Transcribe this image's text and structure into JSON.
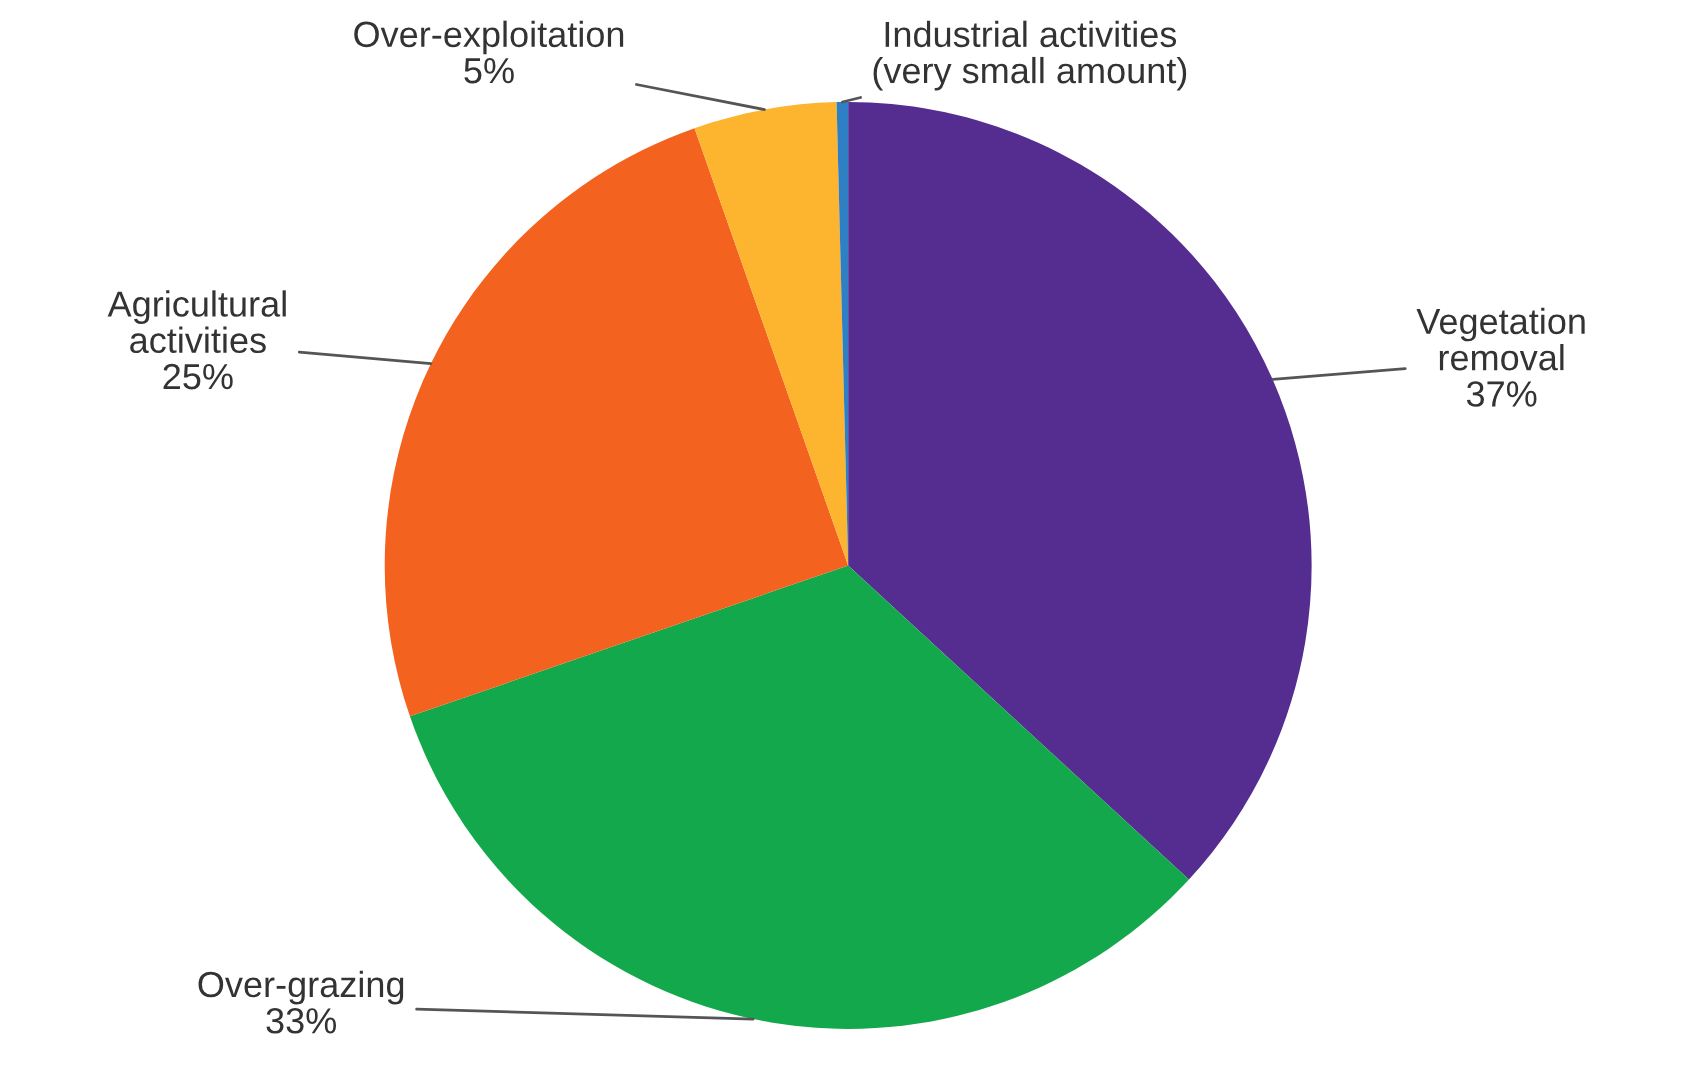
{
  "chart_data": {
    "type": "pie",
    "categories": [
      "Vegetation\nremoval",
      "Over-grazing",
      "Agricultural\nactivities",
      "Over-exploitation",
      "Industrial activities\n(very small amount)"
    ],
    "values": [
      37,
      33,
      25,
      5,
      0.4
    ],
    "value_labels": [
      "37%",
      "33%",
      "25%",
      "5%",
      null
    ],
    "colors": [
      "#552d91",
      "#13a84b",
      "#f4621f",
      "#fdb42f",
      "#2f7fc4"
    ],
    "legend": false
  }
}
